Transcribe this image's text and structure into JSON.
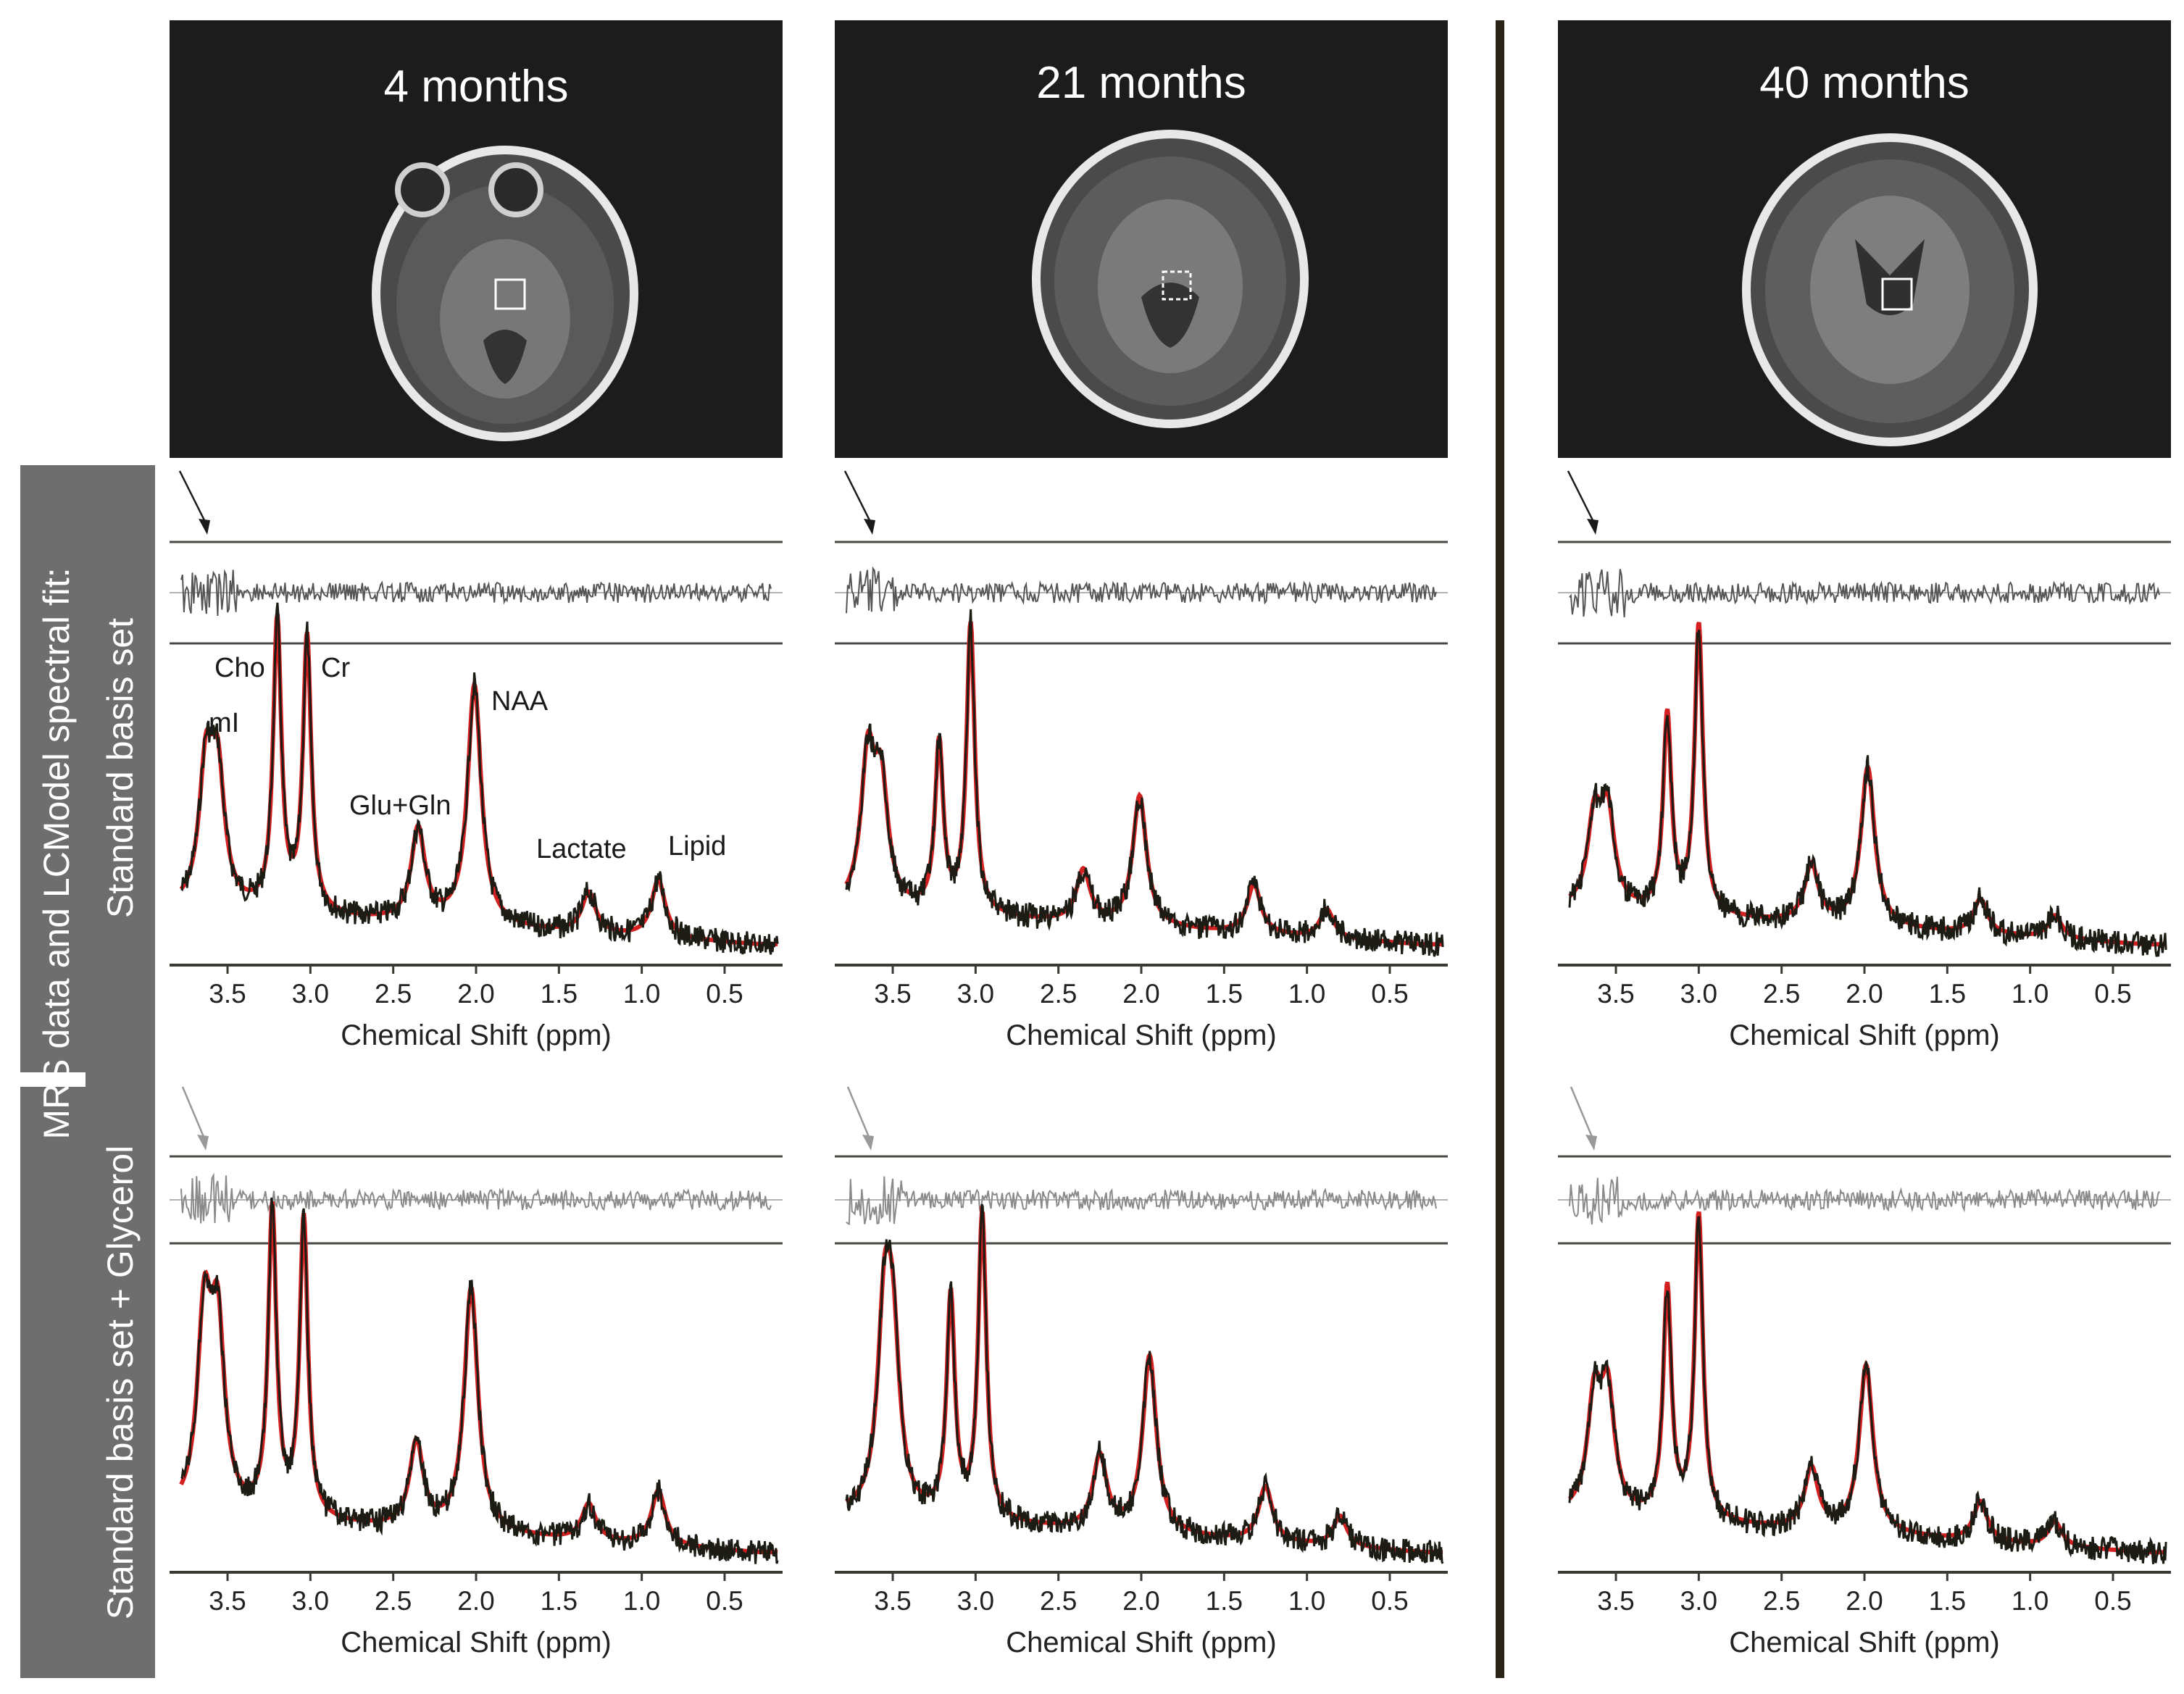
{
  "columns": [
    {
      "title": "4 months"
    },
    {
      "title": "21 months"
    },
    {
      "title": "40 months"
    }
  ],
  "row_labels": {
    "outer": "MRS data and LCModel spectral fit:",
    "row1": "Standard basis set",
    "row2": "Standard basis set + Glycerol"
  },
  "peak_labels": [
    "mI",
    "Cho",
    "Cr",
    "Glu+Gln",
    "NAA",
    "Lactate",
    "Lipid"
  ],
  "colors": {
    "data_trace": "#1c1c14",
    "fit_trace": "#d42020",
    "residual_row1": "#555555",
    "residual_row2": "#8a8a8a",
    "arrow_row1": "#1a1a1a",
    "arrow_row2": "#999999",
    "band": "#6e6e6e",
    "mri_bg": "#1c1c1c",
    "divider": "#2a2418"
  },
  "chart_data": {
    "type": "line",
    "xlabel": "Chemical Shift (ppm)",
    "ylabel": "",
    "x_reversed": true,
    "xlim": [
      3.85,
      0.15
    ],
    "xticks": [
      3.5,
      3.0,
      2.5,
      2.0,
      1.5,
      1.0,
      0.5
    ],
    "xtick_labels": [
      "3.5",
      "3.0",
      "2.5",
      "2.0",
      "1.5",
      "1.0",
      "0.5"
    ],
    "series": [
      {
        "name": "MRS data"
      },
      {
        "name": "LCModel fit"
      },
      {
        "name": "Residual"
      }
    ],
    "panels": [
      {
        "column": "4 months",
        "basis": "Standard basis set",
        "peaks": [
          {
            "ppm": 3.63,
            "amp": 0.46
          },
          {
            "ppm": 3.56,
            "amp": 0.44
          },
          {
            "ppm": 3.2,
            "amp": 1.0
          },
          {
            "ppm": 3.02,
            "amp": 0.95
          },
          {
            "ppm": 2.35,
            "amp": 0.32
          },
          {
            "ppm": 2.01,
            "amp": 0.83
          },
          {
            "ppm": 1.32,
            "amp": 0.14
          },
          {
            "ppm": 0.9,
            "amp": 0.2
          }
        ]
      },
      {
        "column": "21 months",
        "basis": "Standard basis set",
        "peaks": [
          {
            "ppm": 3.65,
            "amp": 0.5
          },
          {
            "ppm": 3.57,
            "amp": 0.4
          },
          {
            "ppm": 3.22,
            "amp": 0.58
          },
          {
            "ppm": 3.03,
            "amp": 1.0
          },
          {
            "ppm": 2.35,
            "amp": 0.18
          },
          {
            "ppm": 2.01,
            "amp": 0.45
          },
          {
            "ppm": 1.32,
            "amp": 0.17
          },
          {
            "ppm": 0.88,
            "amp": 0.1
          }
        ]
      },
      {
        "column": "40 months",
        "basis": "Standard basis set",
        "peaks": [
          {
            "ppm": 3.63,
            "amp": 0.3
          },
          {
            "ppm": 3.55,
            "amp": 0.32
          },
          {
            "ppm": 3.19,
            "amp": 0.68
          },
          {
            "ppm": 3.0,
            "amp": 1.0
          },
          {
            "ppm": 2.32,
            "amp": 0.2
          },
          {
            "ppm": 1.98,
            "amp": 0.55
          },
          {
            "ppm": 1.3,
            "amp": 0.12
          },
          {
            "ppm": 0.85,
            "amp": 0.08
          }
        ]
      },
      {
        "column": "4 months",
        "basis": "Standard basis set + Glycerol",
        "peaks": [
          {
            "ppm": 3.64,
            "amp": 0.62
          },
          {
            "ppm": 3.56,
            "amp": 0.58
          },
          {
            "ppm": 3.23,
            "amp": 1.0
          },
          {
            "ppm": 3.04,
            "amp": 0.98
          },
          {
            "ppm": 2.36,
            "amp": 0.28
          },
          {
            "ppm": 2.03,
            "amp": 0.8
          },
          {
            "ppm": 1.32,
            "amp": 0.12
          },
          {
            "ppm": 0.9,
            "amp": 0.18
          }
        ]
      },
      {
        "column": "21 months",
        "basis": "Standard basis set + Glycerol",
        "peaks": [
          {
            "ppm": 3.55,
            "amp": 0.6
          },
          {
            "ppm": 3.5,
            "amp": 0.5
          },
          {
            "ppm": 3.15,
            "amp": 0.72
          },
          {
            "ppm": 2.96,
            "amp": 1.0
          },
          {
            "ppm": 2.25,
            "amp": 0.24
          },
          {
            "ppm": 1.95,
            "amp": 0.58
          },
          {
            "ppm": 1.25,
            "amp": 0.18
          },
          {
            "ppm": 0.8,
            "amp": 0.1
          }
        ]
      },
      {
        "column": "40 months",
        "basis": "Standard basis set + Glycerol",
        "peaks": [
          {
            "ppm": 3.63,
            "amp": 0.36
          },
          {
            "ppm": 3.55,
            "amp": 0.38
          },
          {
            "ppm": 3.19,
            "amp": 0.75
          },
          {
            "ppm": 3.0,
            "amp": 1.0
          },
          {
            "ppm": 2.32,
            "amp": 0.2
          },
          {
            "ppm": 1.99,
            "amp": 0.55
          },
          {
            "ppm": 1.3,
            "amp": 0.13
          },
          {
            "ppm": 0.85,
            "amp": 0.08
          }
        ]
      }
    ]
  }
}
